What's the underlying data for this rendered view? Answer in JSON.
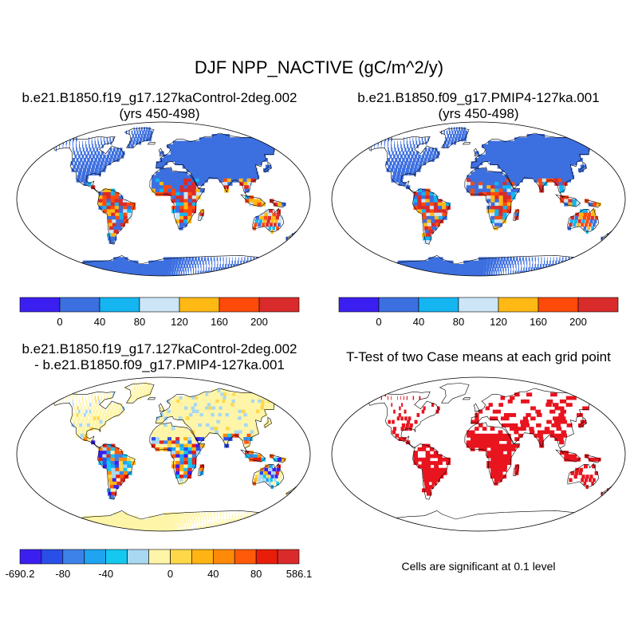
{
  "figure": {
    "title": "DJF NPP_NACTIVE (gC/m^2/y)"
  },
  "panels": [
    {
      "name": "case1",
      "title_line1": "b.e21.B1850.f19_g17.127kaControl-2deg.002",
      "title_line2": "(yrs 450-498)"
    },
    {
      "name": "case2",
      "title_line1": "b.e21.B1850.f09_g17.PMIP4-127ka.001",
      "title_line2": "(yrs 450-498)"
    },
    {
      "name": "difference",
      "title_line1": "b.e21.B1850.f19_g17.127kaControl-2deg.002",
      "title_line2": "- b.e21.B1850.f09_g17.PMIP4-127ka.001"
    },
    {
      "name": "ttest",
      "title_line1": "T-Test of two Case means at each grid point",
      "note": "Cells are significant at 0.1 level"
    }
  ],
  "colorbar_cases": {
    "colors": [
      "#3b1ff0",
      "#3c6fe0",
      "#14b5f0",
      "#cce6f7",
      "#ffb814",
      "#ff4a0a",
      "#d92b2b"
    ],
    "labels": [
      "0",
      "40",
      "80",
      "120",
      "160",
      "200"
    ]
  },
  "colorbar_diff": {
    "colors": [
      "#3b1ff0",
      "#2a4fe8",
      "#3c82e8",
      "#1ea4f0",
      "#14c8f0",
      "#a8d8f2",
      "#fff5a8",
      "#ffd84a",
      "#ffb414",
      "#ff8a0a",
      "#ff5a0a",
      "#e81e0a",
      "#d92b2b"
    ],
    "labels": [
      "-690.2",
      "-80",
      "-40",
      "0",
      "40",
      "80",
      "586.1"
    ]
  },
  "map_colors": {
    "ocean": "#ffffff",
    "land_low": "#3c6fe0",
    "diff_neutral": "#fff5a8",
    "significant": "#e8141e",
    "coast": "#000000"
  }
}
